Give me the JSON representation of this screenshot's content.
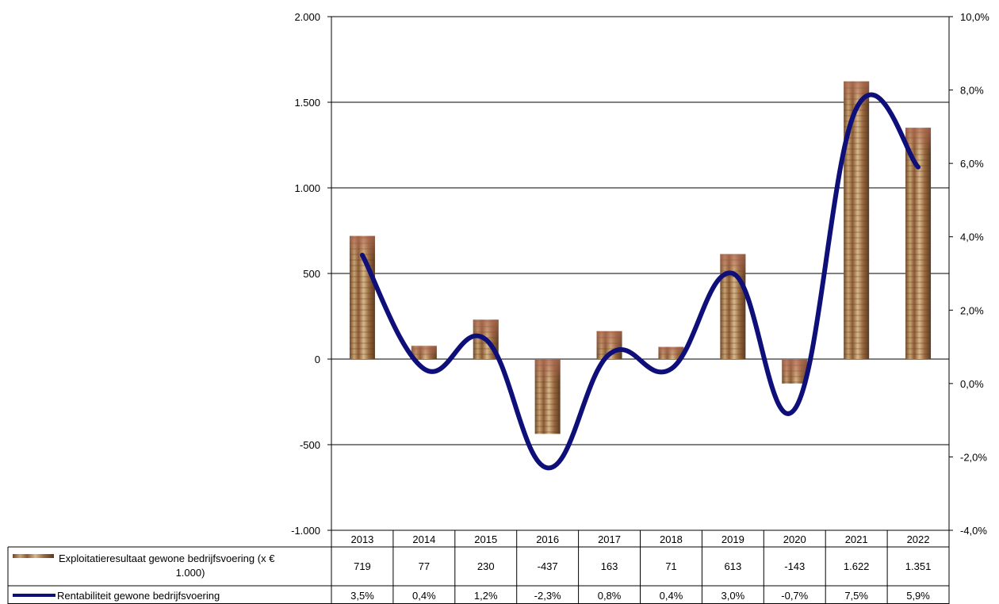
{
  "chart_data": {
    "type": "bar",
    "categories": [
      "2013",
      "2014",
      "2015",
      "2016",
      "2017",
      "2018",
      "2019",
      "2020",
      "2021",
      "2022"
    ],
    "series": [
      {
        "name": "Exploitatieresultaat gewone bedrijfsvoering (x € 1.000)",
        "kind": "bar",
        "axis": "left",
        "values": [
          719,
          77,
          230,
          -437,
          163,
          71,
          613,
          -143,
          1622,
          1351
        ],
        "labels": [
          "719",
          "77",
          "230",
          "-437",
          "163",
          "71",
          "613",
          "-143",
          "1.622",
          "1.351"
        ],
        "fill": "coin-texture"
      },
      {
        "name": "Rentabiliteit gewone bedrijfsvoering",
        "kind": "line",
        "axis": "right",
        "values": [
          3.5,
          0.4,
          1.2,
          -2.3,
          0.8,
          0.4,
          3.0,
          -0.7,
          7.5,
          5.9
        ],
        "labels": [
          "3,5%",
          "0,4%",
          "1,2%",
          "-2,3%",
          "0,8%",
          "0,4%",
          "3,0%",
          "-0,7%",
          "7,5%",
          "5,9%"
        ],
        "color": "#0f0f7a",
        "smooth": true
      }
    ],
    "y_left": {
      "range": [
        -1000,
        2000
      ],
      "ticks": [
        2000,
        1500,
        1000,
        500,
        0,
        -500,
        -1000
      ],
      "tick_labels": [
        "2.000",
        "1.500",
        "1.000",
        "500",
        "0",
        "-500",
        "-1.000"
      ]
    },
    "y_right": {
      "range": [
        -4,
        10
      ],
      "ticks": [
        10,
        8,
        6,
        4,
        2,
        0,
        -2,
        -4
      ],
      "tick_labels": [
        "10,0%",
        "8,0%",
        "6,0%",
        "4,0%",
        "2,0%",
        "0,0%",
        "-2,0%",
        "-4,0%"
      ]
    },
    "grid": true,
    "legend": "data-table-below",
    "data_table": true
  }
}
